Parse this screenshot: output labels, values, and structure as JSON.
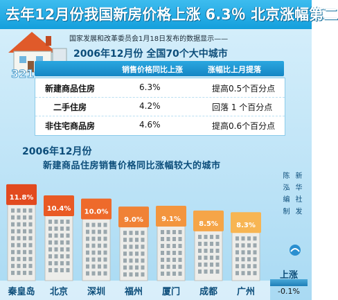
{
  "banner": {
    "title": "去年12月份我国新房价格上涨 6.3％ 北京涨幅第二"
  },
  "source_note": "国家发展和改革委员会1月18日发布的数据显示——",
  "house_logo_text": "321",
  "table": {
    "title": "2006年12月份 全国70个大中城市",
    "headers": [
      "销售价格同比上涨",
      "涨幅比上月提落"
    ],
    "rows": [
      {
        "name": "新建商品住房",
        "yoy": "6.3%",
        "change": "提高0.5个百分点"
      },
      {
        "name": "二手住房",
        "yoy": "4.2%",
        "change": "回落 1 个百分点"
      },
      {
        "name": "非住宅商品房",
        "yoy": "4.6%",
        "change": "提高0.6个百分点"
      }
    ]
  },
  "chart_data": {
    "type": "bar",
    "title": "2006年12月份",
    "subtitle": "新建商品住房销售价格同比涨幅较大的城市",
    "categories": [
      "秦皇岛",
      "北京",
      "深圳",
      "福州",
      "厦门",
      "成都",
      "广州"
    ],
    "values": [
      11.8,
      10.4,
      10.0,
      9.0,
      9.1,
      8.5,
      8.3
    ],
    "value_labels": [
      "11.8%",
      "10.4%",
      "10.0%",
      "9.0%",
      "9.1%",
      "8.5%",
      "8.3%"
    ],
    "bar_colors": [
      "#e24a1f",
      "#e95a25",
      "#ee6a2b",
      "#f08236",
      "#f3953e",
      "#f5a548",
      "#f7b553"
    ],
    "ylim": [
      0,
      13
    ],
    "legend": "top-right"
  },
  "legend_note": {
    "label": "上涨",
    "down_label": "上涨",
    "down_value": "-0.1%"
  },
  "credit": {
    "line1": "陈 泓 编 制",
    "line2": "新 华 社 发"
  }
}
